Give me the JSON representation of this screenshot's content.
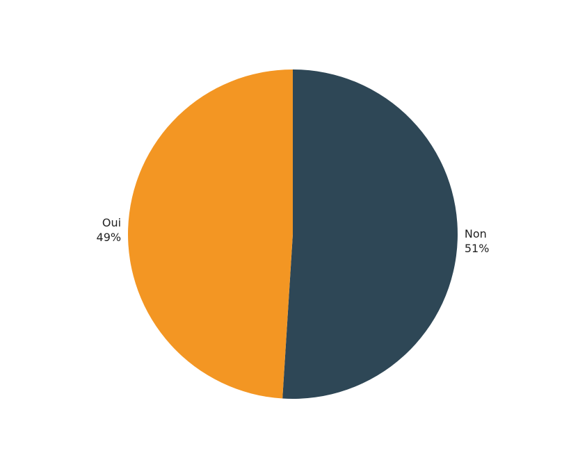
{
  "chart_data": {
    "type": "pie",
    "title": "",
    "start": "top",
    "direction": "clockwise",
    "slices": [
      {
        "label": "Non",
        "value": 51,
        "value_label": "51%",
        "color": "#2e4756"
      },
      {
        "label": "Oui",
        "value": 49,
        "value_label": "49%",
        "color": "#f39623"
      }
    ]
  }
}
